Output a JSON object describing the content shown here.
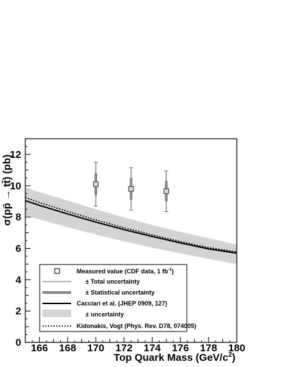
{
  "chart_data": {
    "type": "line",
    "xlabel": "Top Quark Mass (GeV/c",
    "xlabel_sup": "2",
    "xlabel_close": ")",
    "ylabel": "σ(pp̄ → tt̄) (pb)",
    "xlim": [
      165,
      180
    ],
    "ylim": [
      0,
      13
    ],
    "x_ticks": [
      166,
      168,
      170,
      172,
      174,
      176,
      178,
      180
    ],
    "y_ticks": [
      0,
      2,
      4,
      6,
      8,
      10,
      12
    ],
    "grid": false,
    "legend_position": "bottom-left",
    "measurements": {
      "label": "Measured value (CDF data, 1 fb",
      "label_sup": "-1",
      "label_close": ")",
      "points": [
        {
          "x": 170.0,
          "y": 10.1,
          "total_err": 1.4,
          "stat_err": 0.7
        },
        {
          "x": 172.5,
          "y": 9.8,
          "total_err": 1.35,
          "stat_err": 0.7
        },
        {
          "x": 175.0,
          "y": 9.65,
          "total_err": 1.3,
          "stat_err": 0.65
        }
      ]
    },
    "series": [
      {
        "name": "Cacciari et al. (JHEP 0909, 127)",
        "style": "solid",
        "color": "#000000",
        "x": [
          165,
          166,
          168,
          170,
          172,
          174,
          176,
          178,
          180
        ],
        "y": [
          9.05,
          8.75,
          8.2,
          7.68,
          7.2,
          6.76,
          6.35,
          5.97,
          5.7
        ]
      },
      {
        "name": "Kidonakis, Vogt (Phys. Rev. D78, 074005)",
        "style": "dotted",
        "color": "#000000",
        "x": [
          165,
          166,
          168,
          170,
          172,
          174,
          176,
          178,
          180
        ],
        "y": [
          9.25,
          8.93,
          8.36,
          7.82,
          7.32,
          6.86,
          6.44,
          6.05,
          5.78
        ]
      }
    ],
    "band": {
      "color": "#d3d3d3",
      "x": [
        165,
        166,
        168,
        170,
        172,
        174,
        176,
        178,
        180
      ],
      "lower": [
        8.1,
        7.85,
        7.35,
        6.88,
        6.45,
        6.05,
        5.68,
        5.33,
        5.0
      ],
      "upper": [
        9.9,
        9.6,
        9.05,
        8.5,
        7.98,
        7.5,
        7.05,
        6.65,
        6.25
      ]
    },
    "legend": [
      {
        "kind": "marker",
        "key": "measured"
      },
      {
        "kind": "thin-line",
        "label": "± Total uncertainty"
      },
      {
        "kind": "thick-line",
        "label": "± Statistical uncertainty"
      },
      {
        "kind": "black-line",
        "label": "Cacciari et al. (JHEP 0909, 127)"
      },
      {
        "kind": "band",
        "label": "± uncertainty"
      },
      {
        "kind": "dotted-line",
        "label": "Kidonakis, Vogt (Phys. Rev. D78, 074005)"
      }
    ]
  }
}
